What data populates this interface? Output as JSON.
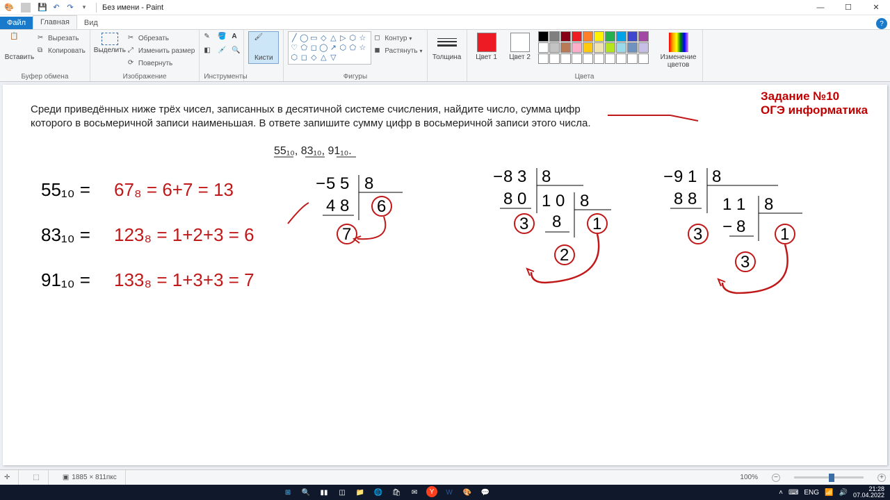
{
  "window": {
    "title": "Без имени - Paint",
    "qat_icons": [
      "paint-icon",
      "save-icon",
      "undo-icon",
      "redo-icon",
      "customize-icon"
    ]
  },
  "tabs": {
    "file": "Файл",
    "home": "Главная",
    "view": "Вид"
  },
  "ribbon": {
    "clipboard": {
      "label": "Буфер обмена",
      "paste": "Вставить",
      "cut": "Вырезать",
      "copy": "Копировать"
    },
    "image": {
      "label": "Изображение",
      "select": "Выделить",
      "crop": "Обрезать",
      "resize": "Изменить размер",
      "rotate": "Повернуть"
    },
    "tools": {
      "label": "Инструменты"
    },
    "brushes": {
      "label": "Кисти"
    },
    "shapes": {
      "label": "Фигуры",
      "outline": "Контур",
      "fill": "Растянуть"
    },
    "size": {
      "label": "Толщина"
    },
    "color1": {
      "label": "Цвет 1",
      "hex": "#ed1c24"
    },
    "color2": {
      "label": "Цвет 2",
      "hex": "#ffffff"
    },
    "palette_label": "Цвета",
    "edit_colors": "Изменение цветов",
    "palette_row1": [
      "#000000",
      "#7f7f7f",
      "#880015",
      "#ed1c24",
      "#ff7f27",
      "#fff200",
      "#22b14c",
      "#00a2e8",
      "#3f48cc",
      "#a349a4"
    ],
    "palette_row2": [
      "#ffffff",
      "#c3c3c3",
      "#b97a57",
      "#ffaec9",
      "#ffc90e",
      "#efe4b0",
      "#b5e61d",
      "#99d9ea",
      "#7092be",
      "#c8bfe7"
    ],
    "palette_row3": [
      "#ffffff",
      "#ffffff",
      "#ffffff",
      "#ffffff",
      "#ffffff",
      "#ffffff",
      "#ffffff",
      "#ffffff",
      "#ffffff",
      "#ffffff"
    ]
  },
  "status": {
    "canvas_size": "1885 × 811пкс",
    "zoom": "100%"
  },
  "taskbar": {
    "lang": "ENG",
    "time": "21:28",
    "date": "07.04.2022"
  },
  "canvas": {
    "task_title1": "Задание №10",
    "task_title2": "ОГЭ информатика",
    "task_color": "#c00000",
    "problem_line1": "Среди приведённых ниже трёх чисел, записанных в десятичной системе счисления, найдите число, сумма цифр",
    "problem_line2": "которого в восьмеричной записи наименьшая. В ответе запишите сумму цифр в восьмеричной записи этого числа.",
    "numbers": "55₁₀, 83₁₀, 91₁₀.",
    "ink_black": "#000000",
    "ink_red": "#c01818",
    "line1_black": "55₁₀ =",
    "line1_red": "67₈ = 6+7 = 13",
    "line2_black": "83₁₀ =",
    "line2_red": "123₈ = 1+2+3 = 6",
    "line3_black": "91₁₀ =",
    "line3_red": "133₈ = 1+3+3 = 7",
    "div1": {
      "top": "55 | 8",
      "mid": "48 | 6",
      "bot": "7"
    },
    "div2": {
      "top": "83 | 8",
      "mid": "80 | 10 | 8",
      "r1": "3",
      "r2": "8 | 1",
      "r3": "2"
    },
    "div3": {
      "top": "91 | 8",
      "mid": "88 | 11 | 8",
      "r1": "3",
      "r2": "8 | 1",
      "r3": "3"
    }
  }
}
